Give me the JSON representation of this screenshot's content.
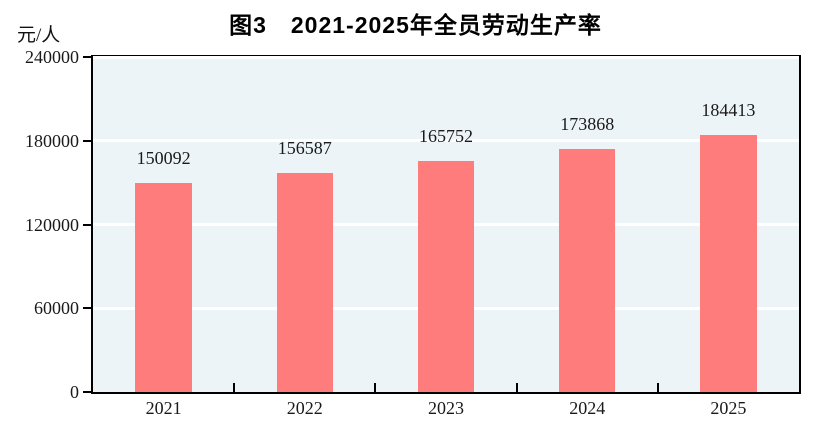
{
  "title": "图3　2021-2025年全员劳动生产率",
  "y_unit": "元/人",
  "chart_data": {
    "type": "bar",
    "title": "图3　2021-2025年全员劳动生产率",
    "categories": [
      "2021",
      "2022",
      "2023",
      "2024",
      "2025"
    ],
    "values": [
      150092,
      156587,
      165752,
      173868,
      184413
    ],
    "data_labels": [
      "150092",
      "156587",
      "165752",
      "173868",
      "184413"
    ],
    "xlabel": "",
    "ylabel": "元/人",
    "ylim": [
      0,
      240000
    ],
    "yticks": [
      0,
      60000,
      120000,
      180000,
      240000
    ],
    "ytick_labels": [
      "0",
      "60000",
      "120000",
      "180000",
      "240000"
    ],
    "grid": "horizontal",
    "legend_position": "none",
    "colors": {
      "bar": "#FF7C7C",
      "plot_background": "#EDF4F7",
      "gridline": "#FFFFFF",
      "axis": "#000000",
      "text": "#1A1A1A"
    }
  }
}
